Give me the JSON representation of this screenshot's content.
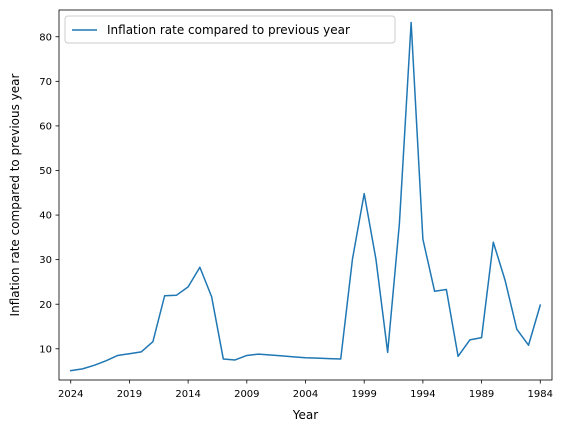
{
  "chart_data": {
    "type": "line",
    "title": "",
    "xlabel": "Year",
    "ylabel": "Inflation rate compared to previous year",
    "x_axis_inverted": true,
    "xlim": [
      2025.0,
      1983.0
    ],
    "ylim": [
      3.0,
      86.0
    ],
    "x_ticks": [
      2024,
      2019,
      2014,
      2009,
      2004,
      1999,
      1994,
      1989,
      1984
    ],
    "x_tick_labels": [
      "2024",
      "2019",
      "2014",
      "2009",
      "2004",
      "1999",
      "1994",
      "1989",
      "1984"
    ],
    "y_ticks": [
      10,
      20,
      30,
      40,
      50,
      60,
      70,
      80
    ],
    "y_tick_labels": [
      "10",
      "20",
      "30",
      "40",
      "50",
      "60",
      "70",
      "80"
    ],
    "grid": false,
    "legend_position": "top-left",
    "series": [
      {
        "name": "Inflation rate compared to previous year",
        "color": "#1f77b4",
        "x": [
          2024,
          2023,
          2022,
          2021,
          2020,
          2019,
          2018,
          2017,
          2016,
          2015,
          2014,
          2013,
          2012,
          2011,
          2010,
          2009,
          2008,
          2007,
          2006,
          2005,
          2004,
          2003,
          2002,
          2001,
          2000,
          1999,
          1998,
          1997,
          1996,
          1995,
          1994,
          1993,
          1992,
          1991,
          1990,
          1989,
          1988,
          1987,
          1986,
          1985,
          1984
        ],
        "y": [
          5.1,
          5.5,
          6.3,
          7.3,
          8.5,
          8.9,
          9.3,
          11.6,
          21.9,
          22.0,
          23.9,
          28.3,
          21.7,
          7.7,
          7.5,
          8.5,
          8.8,
          8.6,
          8.4,
          8.2,
          8.0,
          7.9,
          7.8,
          7.7,
          30.1,
          44.8,
          30.1,
          9.2,
          38.1,
          83.2,
          34.6,
          22.9,
          23.3,
          8.3,
          12.0,
          12.5,
          33.9,
          25.4,
          14.4,
          10.8,
          19.8
        ]
      }
    ]
  }
}
